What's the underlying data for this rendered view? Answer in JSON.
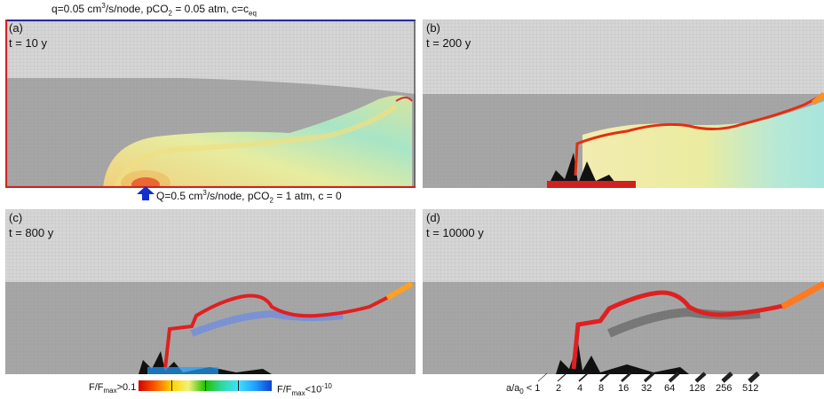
{
  "panels": [
    {
      "label": "(a)",
      "time": "t = 10 y"
    },
    {
      "label": "(b)",
      "time": "t = 200 y"
    },
    {
      "label": "(c)",
      "time": "t = 800 y"
    },
    {
      "label": "(d)",
      "time": "t = 10000 y"
    }
  ],
  "top_boundary": {
    "pre": "q=0.05 cm",
    "exp": "3",
    "mid": "/s/node, pCO",
    "sub": "2",
    "post": " = 0.05 atm, c=c",
    "csub": "eq"
  },
  "bottom_boundary": {
    "pre": "Q=0.5 cm",
    "exp": "3",
    "mid": "/s/node, pCO",
    "sub": "2",
    "post": " = 1 atm, c = 0"
  },
  "colorbar": {
    "left_label": {
      "pre": "F/F",
      "sub": "max",
      "post": ">0.1"
    },
    "right_label": {
      "pre": "F/F",
      "sub": "max",
      "post": "<10",
      "sup": "-10"
    },
    "colors": [
      "#d00000",
      "#ff5a00",
      "#ffd200",
      "#f2f27a",
      "#20c000",
      "#30d8a0",
      "#40e0ff",
      "#20a0ff",
      "#1040d0"
    ]
  },
  "size_legend": {
    "first": {
      "pre": "a/a",
      "sub": "0",
      "post": " < 1"
    },
    "values": [
      "2",
      "4",
      "8",
      "16",
      "32",
      "64",
      "128",
      "256",
      "512"
    ]
  },
  "colors": {
    "top_boundary": "#2a2a9e",
    "side_boundary": "#d42020",
    "inflow_arrow": "#1030d0",
    "rock_gray": "#a8a8a8",
    "upper_gray": "#d4d4d4"
  }
}
